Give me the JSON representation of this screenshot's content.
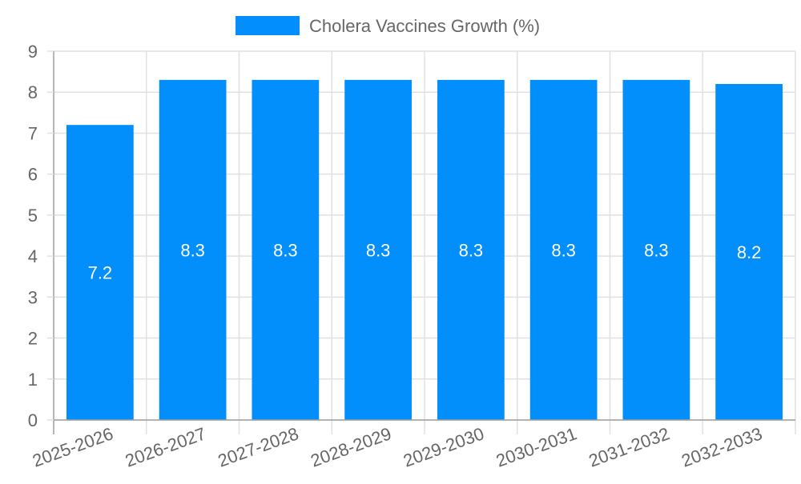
{
  "chart_data": {
    "type": "bar",
    "title": "",
    "legend": [
      {
        "label": "Cholera Vaccines Growth (%)",
        "color": "#038ffb"
      }
    ],
    "categories": [
      "2025-2026",
      "2026-2027",
      "2027-2028",
      "2028-2029",
      "2029-2030",
      "2030-2031",
      "2031-2032",
      "2032-2033"
    ],
    "series": [
      {
        "name": "Cholera Vaccines Growth (%)",
        "values": [
          7.2,
          8.3,
          8.3,
          8.3,
          8.3,
          8.3,
          8.3,
          8.2
        ]
      }
    ],
    "data_labels": [
      "7.2",
      "8.3",
      "8.3",
      "8.3",
      "8.3",
      "8.3",
      "8.3",
      "8.2"
    ],
    "xlabel": "",
    "ylabel": "",
    "ylim": [
      0,
      9
    ],
    "yticks": [
      "0",
      "1",
      "2",
      "3",
      "4",
      "5",
      "6",
      "7",
      "8",
      "9"
    ],
    "grid": true,
    "legend_position": "top"
  },
  "colors": {
    "bar": "#038ffb",
    "grid": "#e0e0e0",
    "axis": "#9e9e9e",
    "text": "#666666",
    "label": "#ffffff"
  }
}
